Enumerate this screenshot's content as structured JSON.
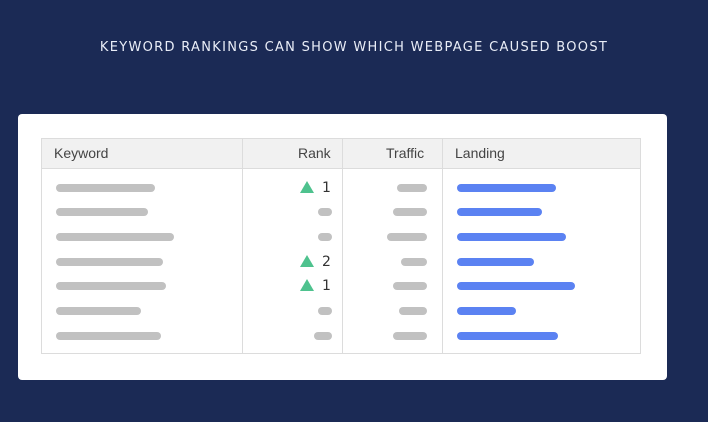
{
  "headline": "KEYWORD RANKINGS CAN SHOW WHICH WEBPAGE CAUSED BOOST",
  "table": {
    "columns": [
      "Keyword",
      "Rank",
      "Traffic",
      "Landing"
    ],
    "rows": [
      {
        "rank_change": "up",
        "rank": "1"
      },
      {
        "rank_change": "",
        "rank": ""
      },
      {
        "rank_change": "",
        "rank": ""
      },
      {
        "rank_change": "up",
        "rank": "2"
      },
      {
        "rank_change": "up",
        "rank": "1"
      },
      {
        "rank_change": "",
        "rank": ""
      },
      {
        "rank_change": "",
        "rank": ""
      }
    ]
  },
  "colors": {
    "background": "#1b2a55",
    "placeholder_bar": "#c1c1c1",
    "landing_bar": "#5b82f2",
    "rank_up_icon": "#4ec28e"
  }
}
